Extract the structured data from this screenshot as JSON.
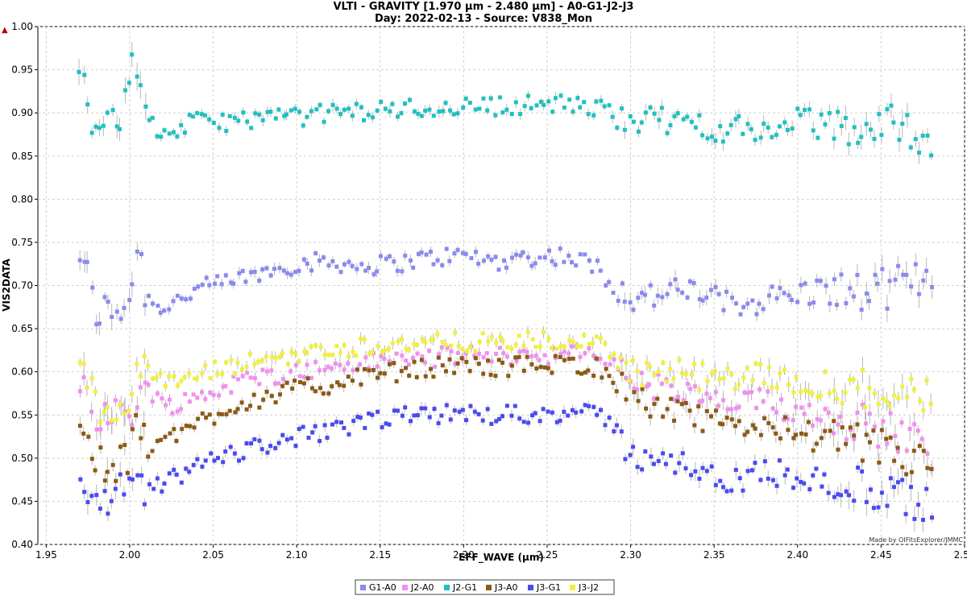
{
  "chart_data": {
    "type": "scatter",
    "title": "VLTI - GRAVITY [1.970 µm - 2.480 µm] - A0-G1-J2-J3",
    "subtitle": "Day: 2022-02-13 - Source: V838_Mon",
    "xlabel": "EFF_WAVE (µm)",
    "ylabel": "VIS2DATA",
    "xlim": [
      1.945,
      2.5
    ],
    "ylim": [
      0.4,
      1.0
    ],
    "xticks": [
      "1.95",
      "2.00",
      "2.05",
      "2.10",
      "2.15",
      "2.20",
      "2.25",
      "2.30",
      "2.35",
      "2.40",
      "2.45",
      "2.50"
    ],
    "yticks": [
      "0.40",
      "0.45",
      "0.50",
      "0.55",
      "0.60",
      "0.65",
      "0.70",
      "0.75",
      "0.80",
      "0.85",
      "0.90",
      "0.95",
      "1.00"
    ],
    "grid": true,
    "error_bars": true,
    "legend_position": "bottom-center",
    "x_range": [
      1.97,
      2.48
    ],
    "series": [
      {
        "name": "G1-A0",
        "color": "#8a8af0",
        "points": [
          [
            1.97,
            0.74
          ],
          [
            1.98,
            0.67
          ],
          [
            1.99,
            0.67
          ],
          [
            2.0,
            0.685
          ],
          [
            2.005,
            0.755
          ],
          [
            2.01,
            0.685
          ],
          [
            2.02,
            0.675
          ],
          [
            2.04,
            0.695
          ],
          [
            2.06,
            0.705
          ],
          [
            2.08,
            0.715
          ],
          [
            2.1,
            0.725
          ],
          [
            2.12,
            0.728
          ],
          [
            2.14,
            0.722
          ],
          [
            2.16,
            0.726
          ],
          [
            2.18,
            0.732
          ],
          [
            2.2,
            0.735
          ],
          [
            2.22,
            0.728
          ],
          [
            2.24,
            0.733
          ],
          [
            2.26,
            0.735
          ],
          [
            2.28,
            0.722
          ],
          [
            2.29,
            0.7
          ],
          [
            2.3,
            0.685
          ],
          [
            2.32,
            0.69
          ],
          [
            2.34,
            0.695
          ],
          [
            2.36,
            0.675
          ],
          [
            2.38,
            0.685
          ],
          [
            2.4,
            0.69
          ],
          [
            2.42,
            0.695
          ],
          [
            2.44,
            0.69
          ],
          [
            2.46,
            0.7
          ],
          [
            2.48,
            0.71
          ]
        ]
      },
      {
        "name": "J2-A0",
        "color": "#f090f0",
        "points": [
          [
            1.97,
            0.6
          ],
          [
            1.98,
            0.555
          ],
          [
            1.99,
            0.545
          ],
          [
            2.0,
            0.555
          ],
          [
            2.01,
            0.585
          ],
          [
            2.02,
            0.56
          ],
          [
            2.04,
            0.57
          ],
          [
            2.06,
            0.585
          ],
          [
            2.08,
            0.595
          ],
          [
            2.1,
            0.6
          ],
          [
            2.12,
            0.605
          ],
          [
            2.14,
            0.61
          ],
          [
            2.16,
            0.615
          ],
          [
            2.18,
            0.616
          ],
          [
            2.2,
            0.62
          ],
          [
            2.22,
            0.618
          ],
          [
            2.24,
            0.62
          ],
          [
            2.26,
            0.62
          ],
          [
            2.28,
            0.62
          ],
          [
            2.29,
            0.61
          ],
          [
            2.3,
            0.59
          ],
          [
            2.32,
            0.58
          ],
          [
            2.34,
            0.57
          ],
          [
            2.36,
            0.56
          ],
          [
            2.38,
            0.565
          ],
          [
            2.4,
            0.555
          ],
          [
            2.42,
            0.55
          ],
          [
            2.44,
            0.54
          ],
          [
            2.46,
            0.53
          ],
          [
            2.48,
            0.51
          ]
        ]
      },
      {
        "name": "J2-G1",
        "color": "#20c0c0",
        "points": [
          [
            1.97,
            0.97
          ],
          [
            1.975,
            0.91
          ],
          [
            1.98,
            0.89
          ],
          [
            1.99,
            0.88
          ],
          [
            2.0,
            0.94
          ],
          [
            2.005,
            0.965
          ],
          [
            2.01,
            0.89
          ],
          [
            2.02,
            0.875
          ],
          [
            2.04,
            0.89
          ],
          [
            2.06,
            0.89
          ],
          [
            2.08,
            0.895
          ],
          [
            2.1,
            0.895
          ],
          [
            2.12,
            0.9
          ],
          [
            2.14,
            0.902
          ],
          [
            2.16,
            0.905
          ],
          [
            2.18,
            0.905
          ],
          [
            2.2,
            0.908
          ],
          [
            2.22,
            0.908
          ],
          [
            2.24,
            0.91
          ],
          [
            2.26,
            0.91
          ],
          [
            2.28,
            0.905
          ],
          [
            2.3,
            0.895
          ],
          [
            2.32,
            0.89
          ],
          [
            2.34,
            0.888
          ],
          [
            2.36,
            0.88
          ],
          [
            2.38,
            0.88
          ],
          [
            2.4,
            0.89
          ],
          [
            2.42,
            0.885
          ],
          [
            2.44,
            0.88
          ],
          [
            2.46,
            0.89
          ],
          [
            2.48,
            0.87
          ]
        ]
      },
      {
        "name": "J3-A0",
        "color": "#8b5a14",
        "points": [
          [
            1.97,
            0.54
          ],
          [
            1.98,
            0.49
          ],
          [
            1.99,
            0.485
          ],
          [
            2.0,
            0.5
          ],
          [
            2.005,
            0.55
          ],
          [
            2.01,
            0.51
          ],
          [
            2.02,
            0.52
          ],
          [
            2.04,
            0.54
          ],
          [
            2.06,
            0.56
          ],
          [
            2.08,
            0.57
          ],
          [
            2.1,
            0.58
          ],
          [
            2.12,
            0.585
          ],
          [
            2.14,
            0.595
          ],
          [
            2.16,
            0.6
          ],
          [
            2.18,
            0.605
          ],
          [
            2.2,
            0.608
          ],
          [
            2.22,
            0.605
          ],
          [
            2.24,
            0.608
          ],
          [
            2.26,
            0.61
          ],
          [
            2.28,
            0.605
          ],
          [
            2.29,
            0.595
          ],
          [
            2.3,
            0.575
          ],
          [
            2.32,
            0.555
          ],
          [
            2.34,
            0.545
          ],
          [
            2.36,
            0.535
          ],
          [
            2.38,
            0.54
          ],
          [
            2.4,
            0.53
          ],
          [
            2.42,
            0.52
          ],
          [
            2.44,
            0.515
          ],
          [
            2.46,
            0.505
          ],
          [
            2.48,
            0.49
          ]
        ]
      },
      {
        "name": "J3-G1",
        "color": "#4a4af0",
        "points": [
          [
            1.97,
            0.47
          ],
          [
            1.98,
            0.44
          ],
          [
            1.99,
            0.445
          ],
          [
            2.0,
            0.475
          ],
          [
            2.01,
            0.46
          ],
          [
            2.02,
            0.47
          ],
          [
            2.04,
            0.49
          ],
          [
            2.06,
            0.505
          ],
          [
            2.08,
            0.515
          ],
          [
            2.1,
            0.525
          ],
          [
            2.12,
            0.53
          ],
          [
            2.14,
            0.54
          ],
          [
            2.16,
            0.548
          ],
          [
            2.18,
            0.55
          ],
          [
            2.2,
            0.552
          ],
          [
            2.22,
            0.55
          ],
          [
            2.24,
            0.552
          ],
          [
            2.26,
            0.552
          ],
          [
            2.28,
            0.55
          ],
          [
            2.29,
            0.54
          ],
          [
            2.3,
            0.5
          ],
          [
            2.32,
            0.505
          ],
          [
            2.34,
            0.48
          ],
          [
            2.36,
            0.47
          ],
          [
            2.38,
            0.485
          ],
          [
            2.4,
            0.48
          ],
          [
            2.42,
            0.47
          ],
          [
            2.44,
            0.465
          ],
          [
            2.46,
            0.455
          ],
          [
            2.48,
            0.44
          ]
        ]
      },
      {
        "name": "J3-J2",
        "color": "#f0f040",
        "points": [
          [
            1.97,
            0.62
          ],
          [
            1.98,
            0.56
          ],
          [
            1.99,
            0.56
          ],
          [
            2.0,
            0.58
          ],
          [
            2.01,
            0.605
          ],
          [
            2.02,
            0.585
          ],
          [
            2.04,
            0.595
          ],
          [
            2.06,
            0.605
          ],
          [
            2.08,
            0.615
          ],
          [
            2.1,
            0.62
          ],
          [
            2.12,
            0.625
          ],
          [
            2.14,
            0.63
          ],
          [
            2.16,
            0.632
          ],
          [
            2.18,
            0.633
          ],
          [
            2.2,
            0.635
          ],
          [
            2.22,
            0.633
          ],
          [
            2.24,
            0.635
          ],
          [
            2.26,
            0.635
          ],
          [
            2.28,
            0.632
          ],
          [
            2.29,
            0.625
          ],
          [
            2.3,
            0.6
          ],
          [
            2.32,
            0.6
          ],
          [
            2.34,
            0.595
          ],
          [
            2.36,
            0.59
          ],
          [
            2.38,
            0.595
          ],
          [
            2.4,
            0.59
          ],
          [
            2.42,
            0.585
          ],
          [
            2.44,
            0.58
          ],
          [
            2.46,
            0.578
          ],
          [
            2.48,
            0.57
          ]
        ]
      }
    ]
  },
  "marker_note": "▲",
  "credit": "Made by OIFitsExplorer/JMMC"
}
